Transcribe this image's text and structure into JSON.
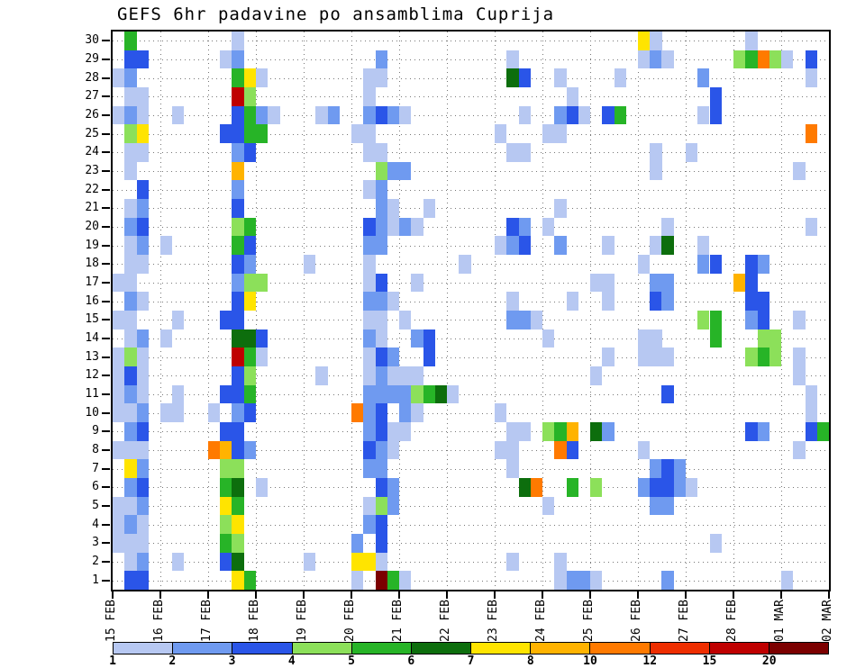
{
  "title": "GEFS 6hr padavine po ansamblima Cuprija",
  "chart_data": {
    "type": "heatmap",
    "title": "GEFS 6hr padavine po ansamblima Cuprija",
    "xlabel": "",
    "ylabel": "",
    "x_labels": [
      "15 FEB",
      "16 FEB",
      "17 FEB",
      "18 FEB",
      "19 FEB",
      "20 FEB",
      "21 FEB",
      "22 FEB",
      "23 FEB",
      "24 FEB",
      "25 FEB",
      "26 FEB",
      "27 FEB",
      "28 FEB",
      "01 MAR",
      "02 MAR"
    ],
    "columns_per_day": 4,
    "n_cols": 60,
    "n_rows": 30,
    "grid_on": true,
    "y_labels": [
      "30",
      "29",
      "28",
      "27",
      "26",
      "25",
      "24",
      "23",
      "22",
      "21",
      "20",
      "19",
      "18",
      "17",
      "16",
      "15",
      "14",
      "13",
      "12",
      "11",
      "10",
      "9",
      "8",
      "7",
      "6",
      "5",
      "4",
      "3",
      "2",
      "1"
    ],
    "level_ranges": {
      "0": "0-1",
      "1": "1-2",
      "2": "2-3",
      "3": "3-4",
      "4": "4-5",
      "5": "5-6",
      "6": "6-7",
      "7": "7-8",
      "8": "8-10",
      "9": "10-12",
      "A": "12-15",
      "B": "15-20",
      "C": ">20"
    },
    "palette": {
      "1": "#b7c8f2",
      "2": "#6f9af0",
      "3": "#2a55e8",
      "4": "#8ce05a",
      "5": "#27b427",
      "6": "#0d6e0d",
      "7": "#ffe400",
      "8": "#ffb300",
      "9": "#ff7a00",
      "A": "#ee2e00",
      "B": "#bf0000",
      "C": "#7c0000"
    },
    "rows": [
      "0500 0000 0010 0000 0000 0000 0000 0000 0000 0000 0000 7100 0000 0100 0000",
      "0330 0000 0120 0000 0000 0020 0000 0000 0100 0000 0000 1210 0000 4594 1030",
      "1200 0000 0057 1000 0000 0110 0000 0000 0630 0100 0010 0000 0200 0000 0010",
      "0110 0000 00B4 0000 0000 0100 0000 0000 0000 0010 0000 0000 0030 0000 0000",
      "1210 0100 0035 2100 0120 0232 1000 0000 0010 0231 0350 0000 0130 0000 0000",
      "0470 0000 0335 5000 0000 1100 0000 0000 1000 1100 0000 0000 0000 0000 0090",
      "0110 0000 0023 0000 0000 0110 0000 0000 0110 0000 0000 0100 1000 0000 0000",
      "0100 0000 0080 0000 0000 0042 2000 0000 0000 0000 0000 0100 0000 0000 0100",
      "0030 0000 0020 0000 0000 0120 0000 0000 0000 0000 0000 0000 0000 0000 0000",
      "0120 0000 0030 0000 0000 0021 0010 0000 0000 0100 0000 0000 0000 0000 0000",
      "0230 0000 0045 0000 0000 0321 2100 0000 0320 1000 0000 0010 0000 0000 0010",
      "0120 1000 0053 0000 0000 0220 0000 0000 1230 0200 0100 0160 0100 0000 0000",
      "0110 0000 0032 0000 1000 0100 0000 0100 0000 0000 0000 1000 0230 0320 0000",
      "1100 0000 0024 4000 0000 0130 0100 0000 0000 0000 1100 0220 0000 8300 0000",
      "0210 0000 0037 0000 0000 0221 0000 0000 0100 0010 0100 0320 0000 0330 0000",
      "1100 0100 0330 0000 0000 0110 1000 0000 0221 0000 0000 0000 0450 0230 0100",
      "0120 1000 0066 3000 0000 0210 0230 0000 0000 1000 0000 1100 0050 0044 0000",
      "1410 0000 00B5 1000 0000 0132 0030 0000 0000 0000 0100 1110 0000 0454 0100",
      "1310 0000 0034 0000 0100 0121 1100 0000 0000 0000 1000 0000 0000 0000 0100",
      "1210 0100 0335 0000 0000 0222 2456 1000 0000 0000 0000 0030 0000 0000 0010",
      "1120 1100 1023 0000 0000 9230 2100 0000 1000 0000 0000 0000 0000 0000 0010",
      "0230 0000 0330 0000 0000 0231 1000 0000 0110 4580 6200 0000 0000 0320 0035",
      "1110 0000 9832 0000 0000 0321 0000 0000 1100 0930 0000 1000 0000 0000 0100",
      "0720 0000 0440 0000 0000 0220 0000 0000 0100 0000 0000 0232 0000 0000 0000",
      "0230 0000 0560 1000 0000 0032 0000 0000 0069 0050 4000 2332 1000 0000 0000",
      "1120 0000 0750 0000 0000 0142 0000 0000 0000 1000 0000 0220 0000 0000 0000",
      "1210 0000 0470 0000 0000 0230 0000 0000 0000 0000 0000 0000 0000 0000 0000",
      "1110 0000 0540 0000 0000 2030 0000 0000 0000 0000 0000 0000 0010 0000 0000",
      "0120 0100 0360 0000 1000 7710 0000 0000 0100 0100 0000 0000 0000 0000 0000",
      "0330 0000 0075 0000 0000 10C5 1000 0000 0000 0122 1000 0020 0000 0000 1000"
    ],
    "colorbar": {
      "labels": [
        "1",
        "2",
        "3",
        "4",
        "5",
        "6",
        "7",
        "8",
        "10",
        "12",
        "15",
        "20"
      ],
      "colors": [
        "#b7c8f2",
        "#6f9af0",
        "#2a55e8",
        "#8ce05a",
        "#27b427",
        "#0d6e0d",
        "#ffe400",
        "#ffb300",
        "#ff7a00",
        "#ee2e00",
        "#bf0000",
        "#7c0000"
      ],
      "position": "bottom"
    }
  }
}
